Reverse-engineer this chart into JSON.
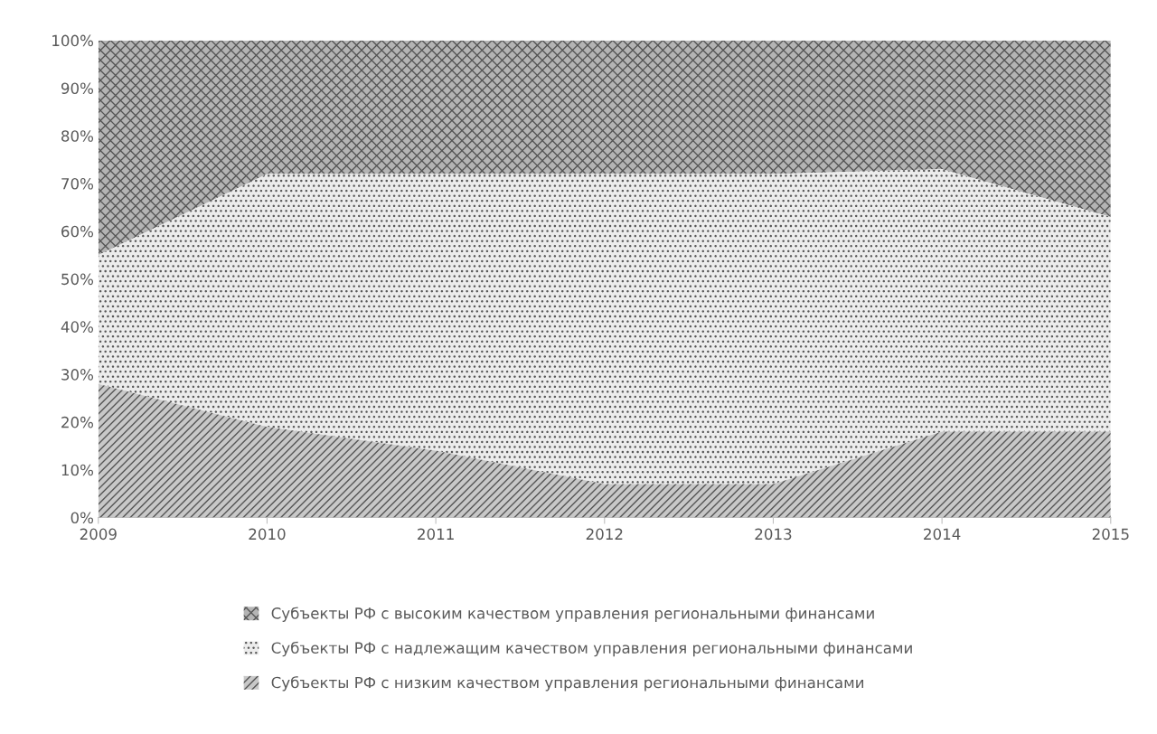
{
  "chart_data": {
    "type": "area",
    "stacked": true,
    "x": [
      2009,
      2010,
      2011,
      2012,
      2013,
      2014,
      2015
    ],
    "series": [
      {
        "name": "Субъекты РФ с низким качеством управления региональными финансами",
        "color": "#c8c8c8",
        "values": [
          28,
          19,
          14,
          7,
          7,
          18,
          18
        ]
      },
      {
        "name": "Субъекты РФ с надлежащим качеством управления региональными финансами",
        "color": "#ececec",
        "values": [
          27,
          53,
          58,
          65,
          65,
          55,
          45
        ]
      },
      {
        "name": "Субъекты РФ с высоким качеством управления региональными финансами",
        "color": "#b4b4b4",
        "values": [
          45,
          28,
          28,
          28,
          28,
          27,
          37
        ]
      }
    ],
    "xlim": [
      2009,
      2015
    ],
    "xticks": [
      2009,
      2010,
      2011,
      2012,
      2013,
      2014,
      2015
    ],
    "ylim": [
      0,
      100
    ],
    "yticks": [
      {
        "value": 0,
        "label": "0%"
      },
      {
        "value": 10,
        "label": "10%"
      },
      {
        "value": 20,
        "label": "20%"
      },
      {
        "value": 30,
        "label": "30%"
      },
      {
        "value": 40,
        "label": "40%"
      },
      {
        "value": 50,
        "label": "50%"
      },
      {
        "value": 60,
        "label": "60%"
      },
      {
        "value": 70,
        "label": "70%"
      },
      {
        "value": 80,
        "label": "80%"
      },
      {
        "value": 90,
        "label": "90%"
      },
      {
        "value": 100,
        "label": "100%"
      }
    ],
    "grid": false,
    "legend": "bottom"
  }
}
